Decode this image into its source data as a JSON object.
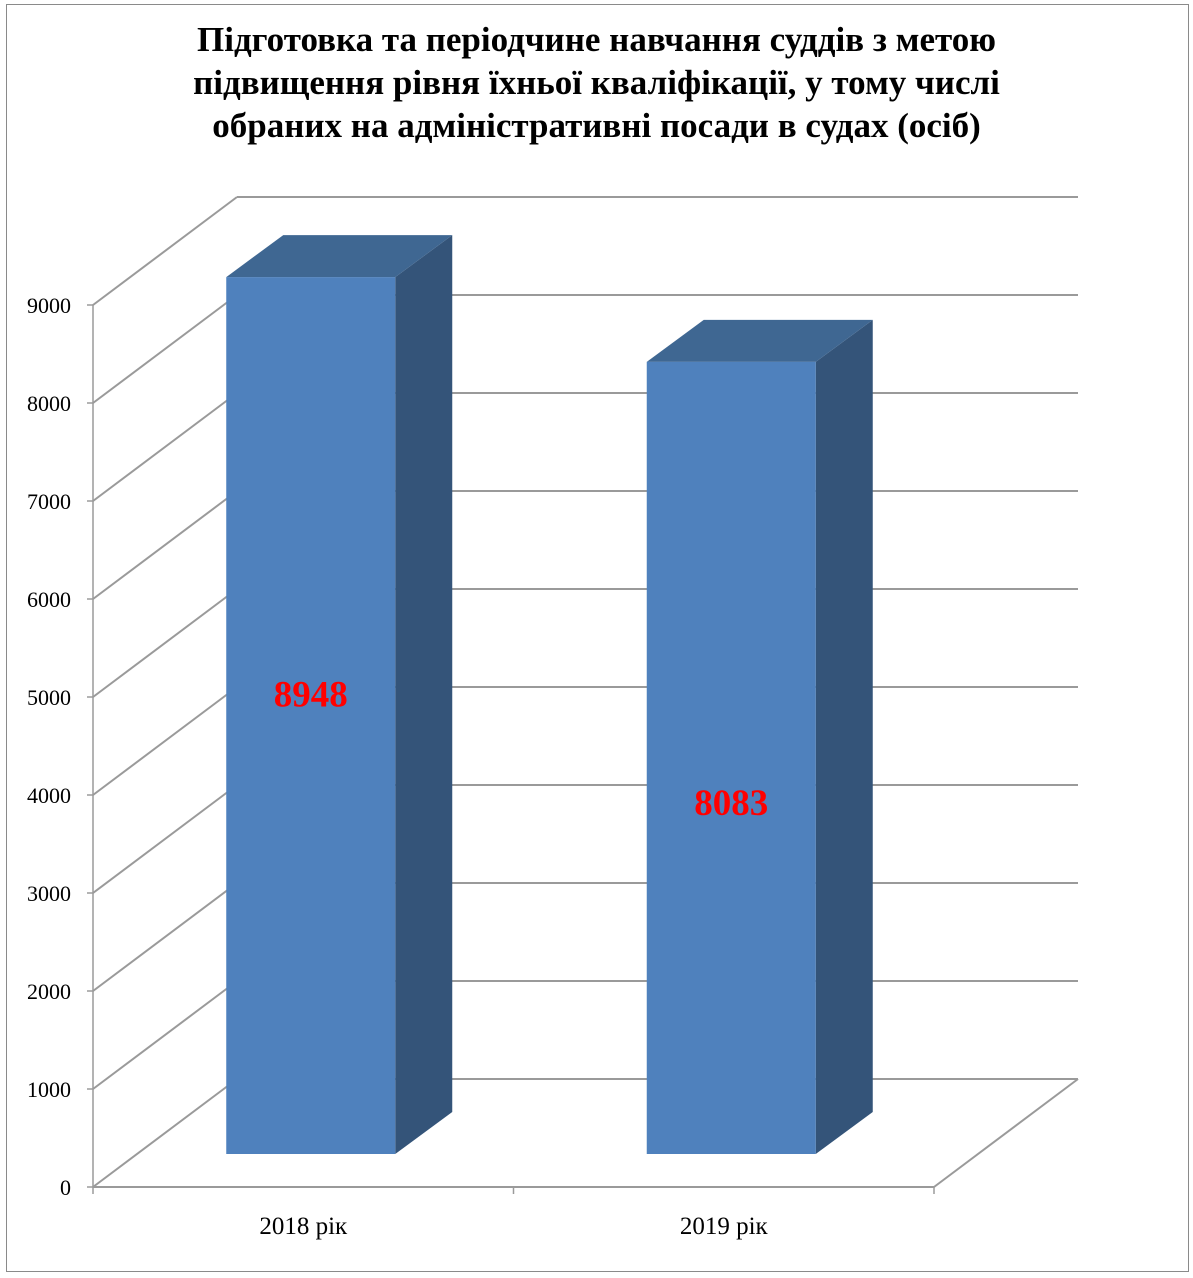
{
  "chart_data": {
    "type": "bar",
    "style": "3d-column",
    "title": "Підготовка та періодчине навчання суддів з метою\nпідвищення рівня їхньої кваліфікації, у тому числі\nобраних на адміністративні посади в судах (осіб)",
    "categories": [
      "2018 рік",
      "2019 рік"
    ],
    "values": [
      8948,
      8083
    ],
    "data_labels": [
      "8948",
      "8083"
    ],
    "yticks": [
      "0",
      "1000",
      "2000",
      "3000",
      "4000",
      "5000",
      "6000",
      "7000",
      "8000",
      "9000"
    ],
    "ylim": [
      0,
      9000
    ],
    "grid": true,
    "legend": "none",
    "xlabel": "",
    "ylabel": ""
  },
  "colors": {
    "bar_front": "#4F81BD",
    "bar_side": "#345479",
    "bar_top": "#3F6792",
    "grid": "#9a9a9a",
    "data_label": "#FF0000",
    "axis_text": "#000000"
  }
}
